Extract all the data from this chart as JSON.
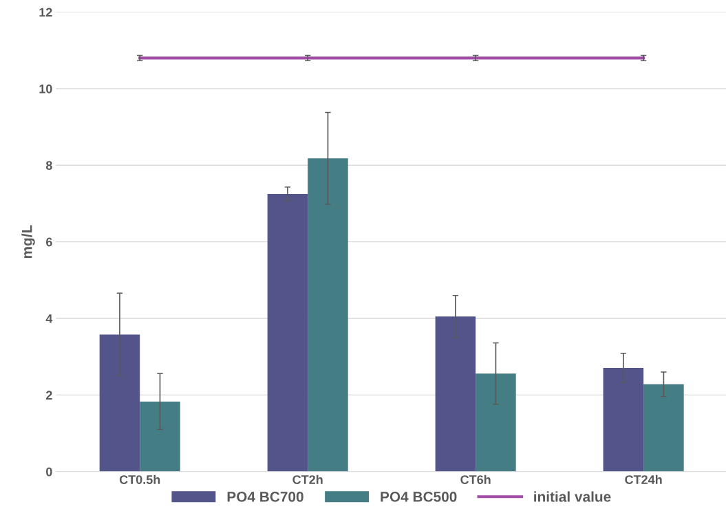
{
  "chart_data": {
    "type": "bar",
    "ylabel": "mg/L",
    "categories": [
      "CT0.5h",
      "CT2h",
      "CT6h",
      "CT24h"
    ],
    "series": [
      {
        "name": "PO4 BC700",
        "color": "#53548a",
        "values": [
          3.58,
          7.25,
          4.05,
          2.71
        ],
        "errors": [
          1.08,
          0.18,
          0.55,
          0.38
        ]
      },
      {
        "name": "PO4 BC500",
        "color": "#447e84",
        "values": [
          1.83,
          8.18,
          2.56,
          2.28
        ],
        "errors": [
          0.73,
          1.2,
          0.8,
          0.32
        ]
      },
      {
        "name": "initial value",
        "type": "line",
        "color": "#a24ea6",
        "values": [
          10.8,
          10.8,
          10.8,
          10.8
        ],
        "errors": [
          0.07,
          0.07,
          0.07,
          0.07
        ],
        "marker": "none"
      }
    ],
    "ylim": [
      0,
      12
    ],
    "yticks": [
      0,
      2,
      4,
      6,
      8,
      10,
      12
    ],
    "grid": "y",
    "legend": "bottom"
  }
}
